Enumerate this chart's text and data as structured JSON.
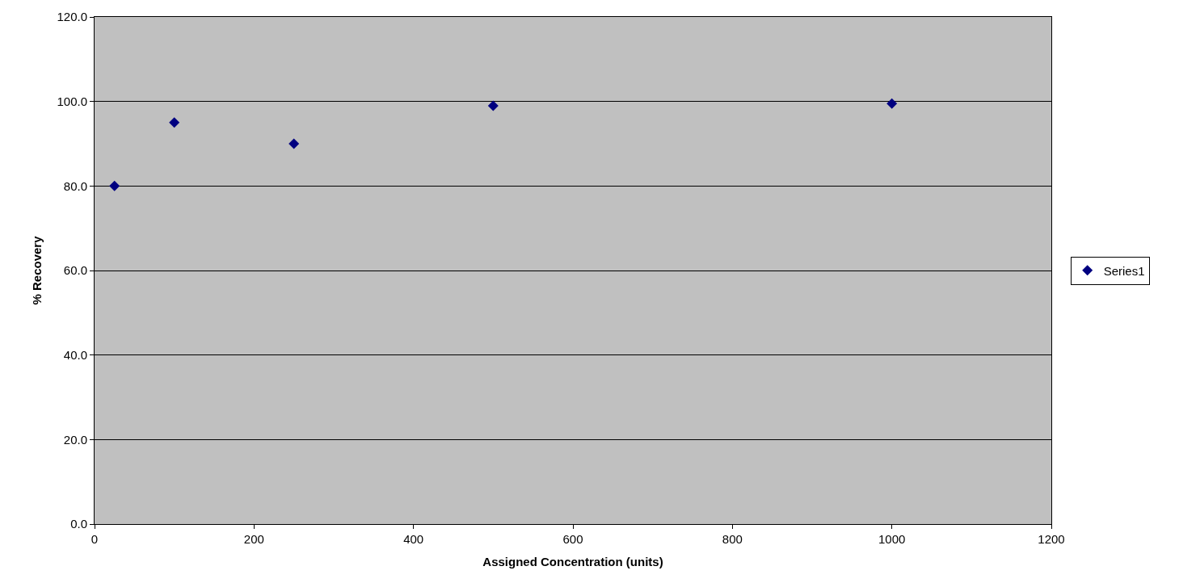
{
  "chart_data": {
    "type": "scatter",
    "xlabel": "Assigned Concentration (units)",
    "ylabel": "% Recovery",
    "x": [
      25,
      100,
      250,
      500,
      1000
    ],
    "series": [
      {
        "name": "Series1",
        "color": "#000080",
        "values": [
          80,
          95,
          90,
          99,
          99.5
        ]
      }
    ],
    "xlim": [
      0,
      1200
    ],
    "xticks": [
      0,
      200,
      400,
      600,
      800,
      1000,
      1200
    ],
    "ylim": [
      0,
      120
    ],
    "yticks": [
      {
        "value": 0,
        "label": "0.0"
      },
      {
        "value": 20,
        "label": "20.0"
      },
      {
        "value": 40,
        "label": "40.0"
      },
      {
        "value": 60,
        "label": "60.0"
      },
      {
        "value": 80,
        "label": "80.0"
      },
      {
        "value": 100,
        "label": "100.0"
      },
      {
        "value": 120,
        "label": "120.0"
      }
    ],
    "grid": "y",
    "legend": "right",
    "marker": "diamond"
  }
}
